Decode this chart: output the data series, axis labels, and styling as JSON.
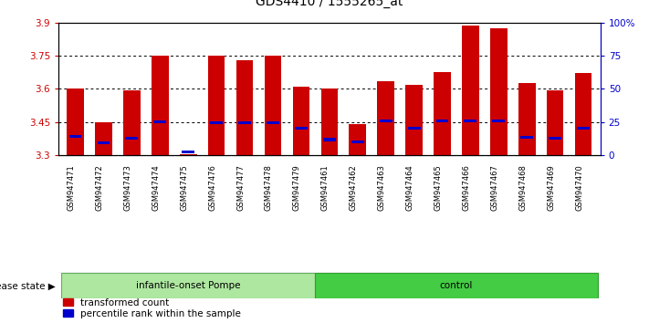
{
  "title": "GDS4410 / 1555265_at",
  "samples": [
    "GSM947471",
    "GSM947472",
    "GSM947473",
    "GSM947474",
    "GSM947475",
    "GSM947476",
    "GSM947477",
    "GSM947478",
    "GSM947479",
    "GSM947461",
    "GSM947462",
    "GSM947463",
    "GSM947464",
    "GSM947465",
    "GSM947466",
    "GSM947467",
    "GSM947468",
    "GSM947469",
    "GSM947470"
  ],
  "red_values": [
    3.6,
    3.45,
    3.595,
    3.75,
    3.305,
    3.75,
    3.73,
    3.75,
    3.61,
    3.6,
    3.44,
    3.635,
    3.62,
    3.675,
    3.885,
    3.875,
    3.625,
    3.595,
    3.67
  ],
  "blue_values": [
    3.385,
    3.355,
    3.375,
    3.45,
    3.315,
    3.445,
    3.445,
    3.445,
    3.42,
    3.37,
    3.36,
    3.455,
    3.42,
    3.455,
    3.455,
    3.455,
    3.38,
    3.375,
    3.42
  ],
  "ymin": 3.3,
  "ymax": 3.9,
  "yticks": [
    3.3,
    3.45,
    3.6,
    3.75,
    3.9
  ],
  "ytick_labels": [
    "3.3",
    "3.45",
    "3.6",
    "3.75",
    "3.9"
  ],
  "right_yticks": [
    0,
    25,
    50,
    75,
    100
  ],
  "right_ytick_labels": [
    "0",
    "25",
    "50",
    "75",
    "100%"
  ],
  "group1_label": "infantile-onset Pompe",
  "group2_label": "control",
  "disease_state_label": "disease state",
  "legend1": "transformed count",
  "legend2": "percentile rank within the sample",
  "bar_color": "#cc0000",
  "blue_color": "#0000cc",
  "bar_width": 0.6,
  "group1_count": 9,
  "group2_count": 10
}
